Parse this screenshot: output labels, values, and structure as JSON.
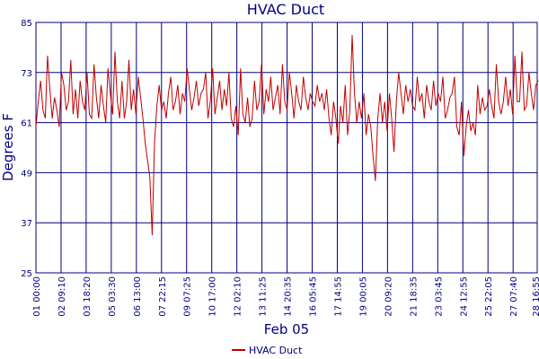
{
  "chart_data": {
    "type": "line",
    "title": "HVAC Duct",
    "xlabel": "Feb 05",
    "ylabel": "Degrees F",
    "ylim": [
      25,
      85
    ],
    "y_ticks": [
      "85",
      "73",
      "61",
      "49",
      "37",
      "25"
    ],
    "y_tick_values": [
      85,
      73,
      61,
      49,
      37,
      25
    ],
    "x_ticks": [
      "01 00:00",
      "02 09:10",
      "03 18:20",
      "05 03:30",
      "06 13:00",
      "07 22:15",
      "09 07:25",
      "10 17:00",
      "12 02:10",
      "13 11:25",
      "14 20:35",
      "16 05:45",
      "17 14:55",
      "19 00:05",
      "20 09:20",
      "21 18:35",
      "23 03:45",
      "24 12:55",
      "25 22:05",
      "27 07:40",
      "28 16:55"
    ],
    "grid": true,
    "legend_position": "bottom-center",
    "colors": {
      "series": "#c00000",
      "axis": "#000080",
      "grid": "#000080"
    },
    "series": [
      {
        "name": "HVAC Duct",
        "color": "#c00000",
        "x_range": [
          0,
          20
        ],
        "values": [
          60,
          66,
          71,
          64,
          62,
          77,
          69,
          62,
          67,
          64,
          60,
          73,
          70,
          64,
          66,
          76,
          63,
          69,
          62,
          71,
          66,
          64,
          73,
          63,
          62,
          75,
          67,
          62,
          70,
          65,
          61,
          74,
          68,
          63,
          78,
          66,
          62,
          71,
          62,
          66,
          76,
          64,
          69,
          63,
          72,
          67,
          62,
          56,
          52,
          48,
          34,
          56,
          65,
          70,
          64,
          66,
          62,
          68,
          72,
          64,
          66,
          70,
          63,
          68,
          66,
          74,
          69,
          64,
          67,
          71,
          65,
          68,
          69,
          73,
          62,
          66,
          74,
          63,
          67,
          71,
          64,
          69,
          65,
          73,
          62,
          60,
          65,
          58,
          74,
          63,
          61,
          67,
          60,
          62,
          71,
          64,
          66,
          75,
          63,
          69,
          66,
          72,
          64,
          67,
          70,
          63,
          75,
          66,
          64,
          73,
          68,
          62,
          70,
          66,
          64,
          72,
          67,
          64,
          68,
          66,
          65,
          70,
          66,
          68,
          64,
          69,
          62,
          58,
          66,
          62,
          56,
          65,
          61,
          70,
          58,
          64,
          82,
          68,
          61,
          66,
          62,
          68,
          58,
          63,
          60,
          53,
          47,
          62,
          68,
          61,
          66,
          59,
          68,
          62,
          54,
          66,
          73,
          68,
          63,
          70,
          66,
          69,
          65,
          64,
          72,
          66,
          68,
          62,
          70,
          66,
          64,
          71,
          65,
          68,
          66,
          72,
          62,
          64,
          67,
          68,
          72,
          60,
          58,
          66,
          53,
          60,
          64,
          59,
          61,
          58,
          70,
          63,
          67,
          64,
          65,
          69,
          65,
          62,
          75,
          66,
          63,
          66,
          72,
          65,
          69,
          63,
          77,
          66,
          66,
          78,
          64,
          65,
          73,
          68,
          64,
          70,
          71
        ]
      }
    ]
  }
}
